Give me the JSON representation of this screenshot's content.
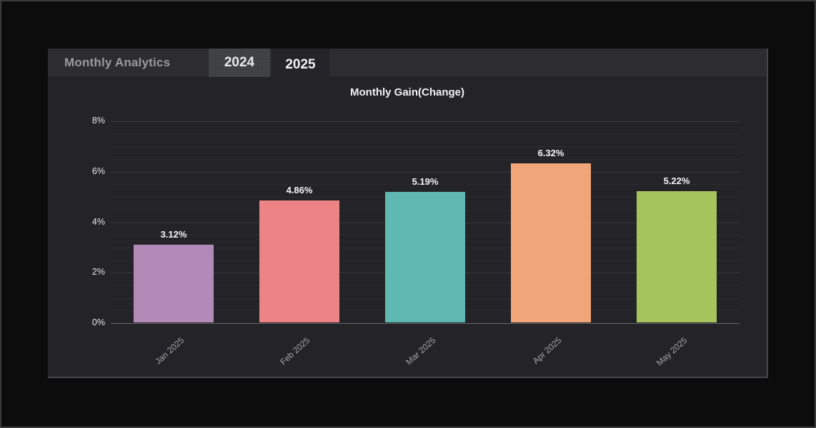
{
  "header": {
    "title": "Monthly Analytics",
    "tabs": [
      {
        "label": "2024",
        "active": false
      },
      {
        "label": "2025",
        "active": true
      }
    ]
  },
  "chart_data": {
    "type": "bar",
    "title": "Monthly Gain(Change)",
    "categories": [
      "Jan 2025",
      "Feb 2025",
      "Mar 2025",
      "Apr 2025",
      "May 2025"
    ],
    "values": [
      3.12,
      4.86,
      5.19,
      6.32,
      5.22
    ],
    "value_labels": [
      "3.12%",
      "4.86%",
      "5.19%",
      "6.32%",
      "5.22%"
    ],
    "bar_colors": [
      "#b18ab8",
      "#ec8385",
      "#5fb8b2",
      "#f0a678",
      "#a6c45e"
    ],
    "xlabel": "",
    "ylabel": "",
    "ylim": [
      0,
      8
    ],
    "y_major_step": 2,
    "y_minor_step": 0.5,
    "y_tick_labels": [
      "0%",
      "2%",
      "4%",
      "6%",
      "8%"
    ],
    "grid": true,
    "legend_position": "none"
  },
  "colors": {
    "page_background": "#0c0c0d",
    "panel_background": "#242428",
    "header_background": "#2d2d30",
    "inactive_tab_background": "#3e4043",
    "title_text": "#9b9b9b",
    "axis_label_text": "#a6a6a6"
  }
}
